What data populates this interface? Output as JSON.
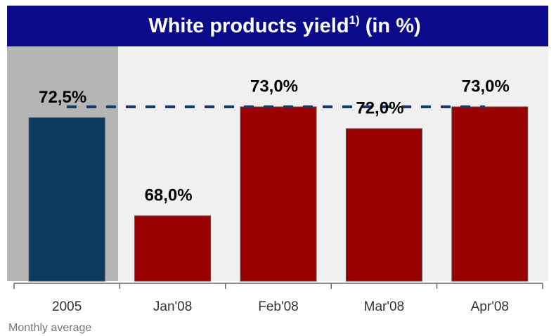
{
  "chart_data": {
    "type": "bar",
    "title": "White products yield",
    "title_superscript": "1)",
    "title_suffix": " (in %)",
    "categories": [
      "2005",
      "Jan'08",
      "Feb'08",
      "Mar'08",
      "Apr'08"
    ],
    "values": [
      72.5,
      68,
      73,
      72,
      73
    ],
    "value_labels": [
      "72,5%",
      "68,0%",
      "73,0%",
      "72,0%",
      "73,0%"
    ],
    "colors": [
      "#0d3a5f",
      "#990000",
      "#990000",
      "#990000",
      "#990000"
    ],
    "ylim": [
      65,
      76
    ],
    "reference_value": 73,
    "annotation": "Monthly average"
  }
}
